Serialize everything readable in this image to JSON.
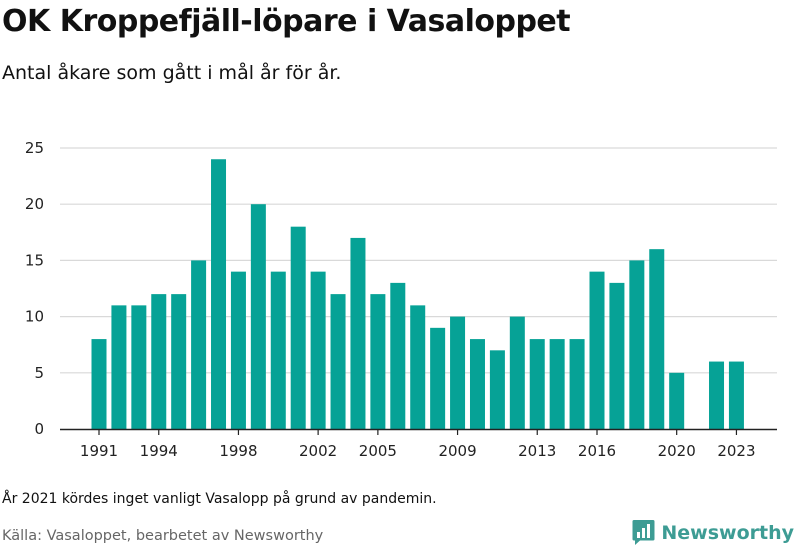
{
  "header": {
    "title": "OK Kroppefjäll-löpare i Vasaloppet",
    "subtitle": "Antal åkare som gått i mål år för år."
  },
  "footer": {
    "note": "År 2021 kördes inget vanligt Vasalopp på grund av pandemin.",
    "source": "Källa: Vasaloppet, bearbetet av Newsworthy",
    "brand": "Newsworthy"
  },
  "colors": {
    "bar": "#06a296",
    "grid": "#d9d9d9",
    "axis": "#222222",
    "brand": "#3d9c94"
  },
  "icons": {
    "brand_logo": "newsworthy-logo-icon"
  },
  "chart_data": {
    "type": "bar",
    "title": "OK Kroppefjäll-löpare i Vasaloppet",
    "subtitle": "Antal åkare som gått i mål år för år.",
    "xlabel": "",
    "ylabel": "",
    "categories": [
      1991,
      1992,
      1993,
      1994,
      1995,
      1996,
      1997,
      1998,
      1999,
      2000,
      2001,
      2002,
      2003,
      2004,
      2005,
      2006,
      2007,
      2008,
      2009,
      2010,
      2011,
      2012,
      2013,
      2014,
      2015,
      2016,
      2017,
      2018,
      2019,
      2020,
      2021,
      2022,
      2023
    ],
    "values": [
      8,
      11,
      11,
      12,
      12,
      15,
      24,
      14,
      20,
      14,
      18,
      14,
      12,
      17,
      12,
      13,
      11,
      9,
      10,
      8,
      7,
      10,
      8,
      8,
      8,
      14,
      13,
      15,
      16,
      5,
      null,
      6,
      6
    ],
    "xticks": [
      "1991",
      "1994",
      "1998",
      "2002",
      "2005",
      "2009",
      "2013",
      "2016",
      "2020",
      "2023"
    ],
    "yticks": [
      "0",
      "5",
      "10",
      "15",
      "20",
      "25"
    ],
    "ylim": [
      0,
      25
    ],
    "grid": true,
    "legend": "none"
  }
}
